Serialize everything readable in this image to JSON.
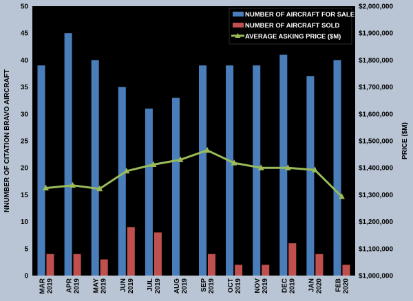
{
  "chart_data": {
    "type": "bar",
    "categories": [
      [
        "MAR",
        "2019"
      ],
      [
        "APR",
        "2019"
      ],
      [
        "MAY",
        "2019"
      ],
      [
        "JUN",
        "2019"
      ],
      [
        "JUL",
        "2019"
      ],
      [
        "AUG",
        "2019"
      ],
      [
        "SEP",
        "2019"
      ],
      [
        "OCT",
        "2019"
      ],
      [
        "NOV",
        "2019"
      ],
      [
        "DEC",
        "2019"
      ],
      [
        "JAN",
        "2020"
      ],
      [
        "FEB",
        "2020"
      ]
    ],
    "series": [
      {
        "name": "NUMBER OF AIRCRAFT FOR SALE",
        "type": "bar",
        "axis": "left",
        "color": "#4a7ebb",
        "values": [
          39,
          45,
          40,
          35,
          31,
          33,
          39,
          39,
          39,
          41,
          37,
          40
        ]
      },
      {
        "name": "NUMBER OF AIRCRAFT SOLD",
        "type": "bar",
        "axis": "left",
        "color": "#c0504d",
        "values": [
          4,
          4,
          3,
          9,
          8,
          0,
          4,
          2,
          2,
          6,
          4,
          2
        ]
      },
      {
        "name": "AVERAGE ASKING PRICE ($M)",
        "type": "line",
        "axis": "right",
        "color": "#9bbb59",
        "marker": "triangle",
        "values": [
          1325000,
          1335000,
          1322000,
          1388000,
          1412000,
          1430000,
          1465000,
          1418000,
          1400000,
          1400000,
          1392000,
          1293000
        ]
      }
    ],
    "ylabel_left": "NNUMBER OF CITATION BRAVO AIRCRAFT",
    "ylabel_right": "PRICE ($M)",
    "ylim_left": [
      0,
      50
    ],
    "yticks_left": [
      "0",
      "5",
      "10",
      "15",
      "20",
      "25",
      "30",
      "35",
      "40",
      "45",
      "50"
    ],
    "ylim_right": [
      1000000,
      2000000
    ],
    "yticks_right": [
      "$1,000,000",
      "$1,100,000",
      "$1,200,000",
      "$1,300,000",
      "$1,400,000",
      "$1,500,000",
      "$1,600,000",
      "$1,700,000",
      "$1,800,000",
      "$1,900,000",
      "$2,000,000"
    ],
    "legend_position": "top-right",
    "grid": false,
    "plot_background": "#000000",
    "page_background": "#b9c5d4"
  }
}
